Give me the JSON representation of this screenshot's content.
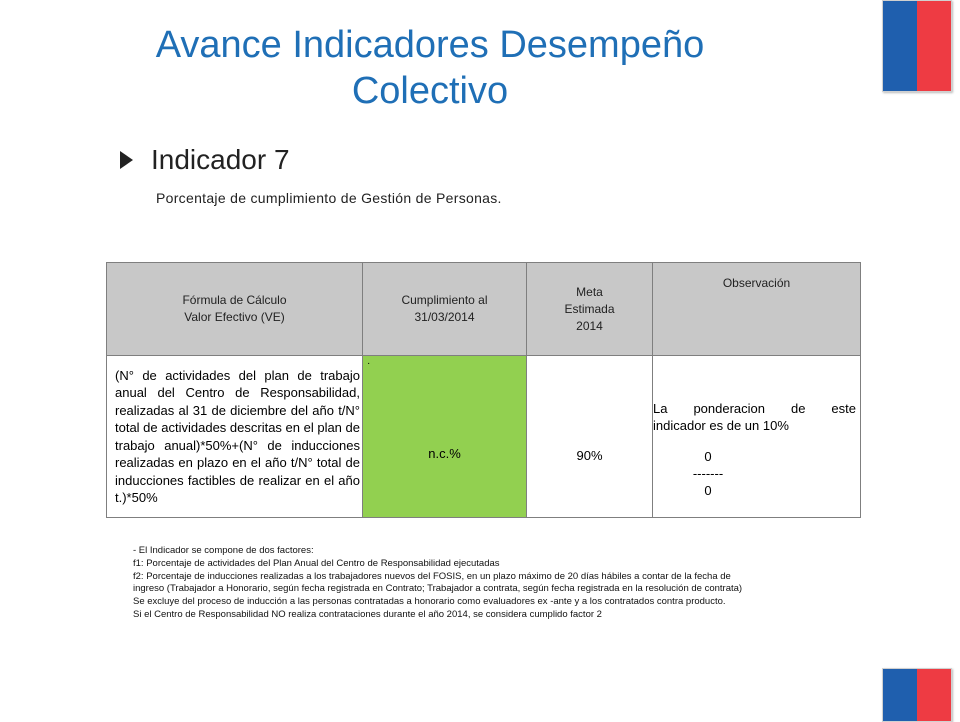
{
  "title": "Avance Indicadores Desempeño Colectivo",
  "indicator": {
    "label": "Indicador 7",
    "description": "Porcentaje de cumplimiento de Gestión de Personas."
  },
  "table": {
    "headers": {
      "formula_line1": "Fórmula de Cálculo",
      "formula_line2": "Valor Efectivo  (VE)",
      "cumplimiento_line1": "Cumplimiento al",
      "cumplimiento_line2": "31/03/2014",
      "meta_line1": "Meta",
      "meta_line2": "Estimada",
      "meta_line3": "2014",
      "observacion": "Observación"
    },
    "row": {
      "formula": "(N° de actividades del plan de trabajo anual del Centro de Responsabilidad, realizadas al 31 de diciembre del año t/N° total de actividades descritas en el plan de trabajo anual)*50%+(N° de inducciones realizadas en plazo en el año t/N° total de inducciones factibles de realizar en el año t.)*50%",
      "cumplimiento_mark": "·",
      "cumplimiento": "n.c.%",
      "meta": "90%",
      "observacion_line1": "La ponderacion de este",
      "observacion_line2": "indicador es de un  10%",
      "numerator": "0",
      "fraction_bar": "-------",
      "denominator": "0"
    }
  },
  "notes": [
    "- El Indicador   se compone de dos factores:",
    "f1: Porcentaje de actividades del Plan Anual del Centro de Responsabilidad ejecutadas",
    "f2: Porcentaje de inducciones realizadas a los trabajadores nuevos del FOSIS, en un plazo máximo de 20 días hábiles  a contar de la fecha de",
    "ingreso (Trabajador a Honorario, según fecha registrada en Contrato; Trabajador a contrata, según fecha registrada en la resolución de contrata)",
    "Se excluye del proceso de inducción a las personas contratadas a honorario como evaluadores ex -ante y a los contratados contra producto.",
    "Si el Centro de Responsabilidad NO realiza contrataciones durante el año 2014, se considera cumplido factor  2"
  ],
  "colors": {
    "title": "#1f6fb6",
    "header_bg": "#c8c8c8",
    "highlight": "#92d050",
    "flag_blue": "#1f5fae",
    "flag_red": "#ee3b43"
  }
}
